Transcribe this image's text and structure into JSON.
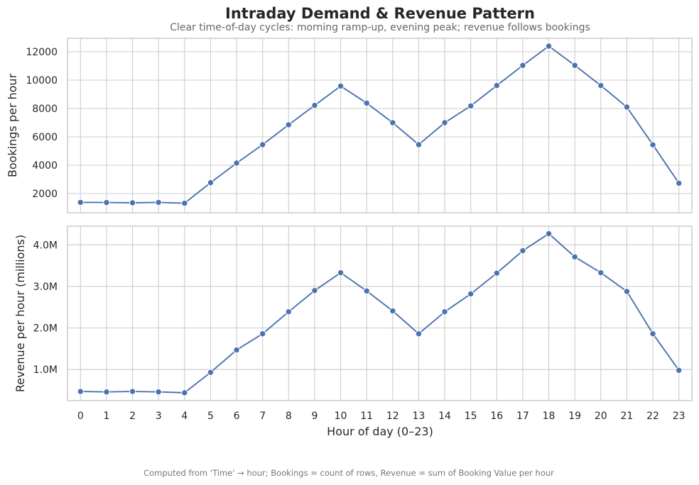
{
  "title": "Intraday Demand & Revenue Pattern",
  "subtitle": "Clear time-of-day cycles: morning ramp-up, evening peak; revenue follows bookings",
  "footer": "Computed from 'Time' → hour; Bookings = count of rows, Revenue = sum of Booking Value per hour",
  "colors": {
    "series": "#4c72b0",
    "grid": "#cccccc",
    "text": "#262626"
  },
  "chart_data": [
    {
      "type": "line",
      "ylabel": "Bookings per hour",
      "xlabel": "",
      "x": [
        0,
        1,
        2,
        3,
        4,
        5,
        6,
        7,
        8,
        9,
        10,
        11,
        12,
        13,
        14,
        15,
        16,
        17,
        18,
        19,
        20,
        21,
        22,
        23
      ],
      "values": [
        1380,
        1370,
        1350,
        1380,
        1320,
        2770,
        4150,
        5450,
        6850,
        8220,
        9580,
        8380,
        7000,
        5450,
        7000,
        8180,
        9620,
        11040,
        12400,
        11040,
        9620,
        8100,
        5440,
        2730
      ],
      "ylim": [
        650,
        12950
      ],
      "yticks": [
        2000,
        4000,
        6000,
        8000,
        10000,
        12000
      ],
      "ytick_labels": [
        "2000",
        "4000",
        "6000",
        "8000",
        "10000",
        "12000"
      ],
      "grid": true
    },
    {
      "type": "line",
      "ylabel": "Revenue per hour (millions)",
      "xlabel": "Hour of day (0–23)",
      "x": [
        0,
        1,
        2,
        3,
        4,
        5,
        6,
        7,
        8,
        9,
        10,
        11,
        12,
        13,
        14,
        15,
        16,
        17,
        18,
        19,
        20,
        21,
        22,
        23
      ],
      "values": [
        0.47,
        0.46,
        0.47,
        0.46,
        0.44,
        0.93,
        1.47,
        1.86,
        2.39,
        2.9,
        3.33,
        2.89,
        2.41,
        1.86,
        2.39,
        2.82,
        3.32,
        3.86,
        4.27,
        3.71,
        3.33,
        2.88,
        1.86,
        0.98
      ],
      "ylim": [
        0.25,
        4.45
      ],
      "yticks": [
        1,
        2,
        3,
        4
      ],
      "ytick_labels": [
        "1.0M",
        "2.0M",
        "3.0M",
        "4.0M"
      ],
      "xtick_labels": [
        "0",
        "1",
        "2",
        "3",
        "4",
        "5",
        "6",
        "7",
        "8",
        "9",
        "10",
        "11",
        "12",
        "13",
        "14",
        "15",
        "16",
        "17",
        "18",
        "19",
        "20",
        "21",
        "22",
        "23"
      ],
      "grid": true
    }
  ]
}
